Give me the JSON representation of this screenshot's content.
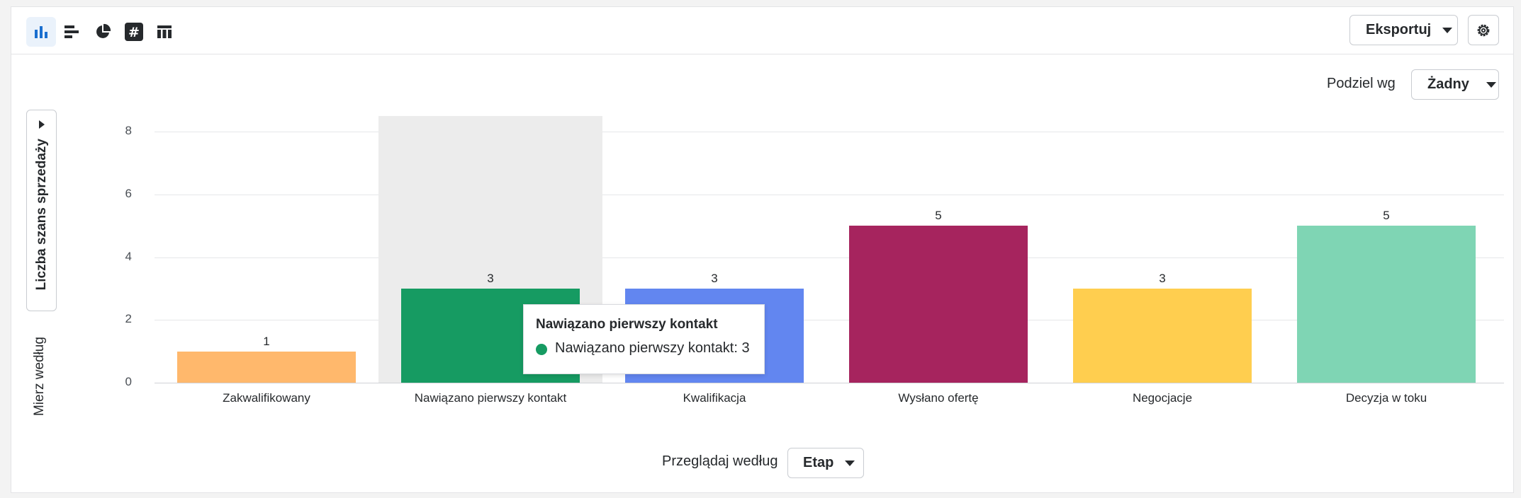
{
  "toolbar": {
    "view_icons": [
      "bar-chart-icon",
      "horizontal-bar-icon",
      "pie-chart-icon",
      "number-icon",
      "table-icon"
    ],
    "export_label": "Eksportuj",
    "accent": "#1a6fcf"
  },
  "segment": {
    "label": "Podziel wg",
    "value": "Żadny"
  },
  "measure": {
    "label": "Mierz według",
    "value": "Liczba szans sprzedaży"
  },
  "browse": {
    "label": "Przeglądaj według",
    "value": "Etap"
  },
  "tooltip": {
    "title": "Nawiązano pierwszy kontakt",
    "entry": "Nawiązano pierwszy kontakt: 3",
    "color": "#169b62"
  },
  "chart_data": {
    "type": "bar",
    "categories": [
      "Zakwalifikowany",
      "Nawiązano pierwszy kontakt",
      "Kwalifikacja",
      "Wysłano ofertę",
      "Negocjacje",
      "Decyzja w toku"
    ],
    "values": [
      1,
      3,
      3,
      5,
      3,
      5
    ],
    "colors": [
      "#ffb86c",
      "#169b62",
      "#6286f0",
      "#a6245e",
      "#ffce4f",
      "#7fd5b4"
    ],
    "ylim": [
      0,
      8
    ],
    "yticks": [
      "0",
      "2",
      "4",
      "6",
      "8"
    ],
    "grid": true,
    "highlighted_category": "Nawiązano pierwszy kontakt"
  }
}
